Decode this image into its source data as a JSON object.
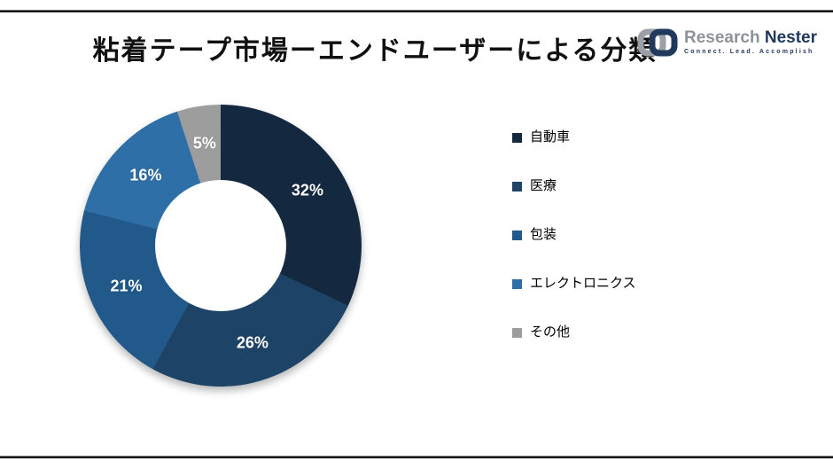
{
  "page": {
    "title": "粘着テープ市場ーエンドユーザーによる分類"
  },
  "logo": {
    "brand_primary": "Research",
    "brand_secondary": "Nester",
    "tagline": "Connect. Lead. Accomplish",
    "colors": {
      "gray": "#9aa0a6",
      "navy": "#1f3864"
    }
  },
  "chart_data": {
    "type": "pie",
    "subtype": "donut",
    "title": "粘着テープ市場ーエンドユーザーによる分類",
    "categories": [
      "自動車",
      "医療",
      "包装",
      "エレクトロニクス",
      "その他"
    ],
    "values": [
      32,
      26,
      21,
      16,
      5
    ],
    "labels": [
      "32%",
      "26%",
      "21%",
      "16%",
      "5%"
    ],
    "colors": [
      "#142940",
      "#1d4467",
      "#21598b",
      "#2e6fa7",
      "#9d9d9d"
    ],
    "start_angle_deg": 0,
    "direction": "clockwise",
    "legend_position": "right",
    "data_label_color": "#ffffff"
  }
}
